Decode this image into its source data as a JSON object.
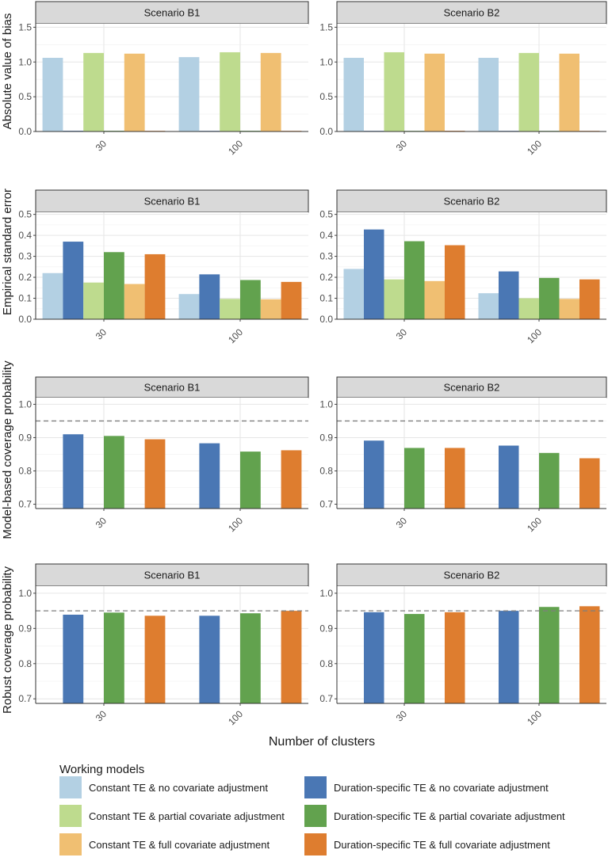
{
  "figure": {
    "x_axis_title": "Number of clusters",
    "legend_title": "Working models",
    "strip_fill": "#d9d9d9",
    "reference_line_color": "#7f7f7f",
    "panels_per_row": [
      "Scenario B1",
      "Scenario B2"
    ]
  },
  "models": [
    {
      "label": "Constant TE & no covariate adjustment",
      "color": "#b3d0e3"
    },
    {
      "label": "Duration-specific TE & no covariate adjustment",
      "color": "#4a77b4"
    },
    {
      "label": "Constant TE & partial covariate adjustment",
      "color": "#bedb8e"
    },
    {
      "label": "Duration-specific TE & partial covariate adjustment",
      "color": "#62a24e"
    },
    {
      "label": "Constant TE & full covariate adjustment",
      "color": "#f0bf72"
    },
    {
      "label": "Duration-specific TE & full covariate adjustment",
      "color": "#de7d2f"
    }
  ],
  "chart_data": [
    {
      "type": "bar",
      "ylabel": "Absolute value of bias",
      "xlabel": "Number of clusters",
      "categories": [
        "30",
        "100"
      ],
      "ylim": [
        0,
        1.55
      ],
      "yticks": [
        "0.0",
        "0.5",
        "1.0",
        "1.5"
      ],
      "ytick_values": [
        0,
        0.5,
        1.0,
        1.5
      ],
      "reference_line": null,
      "panels": [
        {
          "title": "Scenario B1",
          "values": [
            [
              1.06,
              0.01,
              1.13,
              0.01,
              1.12,
              0.005
            ],
            [
              1.07,
              0.005,
              1.14,
              0.01,
              1.13,
              0.005
            ]
          ]
        },
        {
          "title": "Scenario B2",
          "values": [
            [
              1.06,
              0.005,
              1.14,
              0.005,
              1.12,
              0.01
            ],
            [
              1.06,
              0.005,
              1.13,
              0.005,
              1.12,
              0.005
            ]
          ]
        }
      ]
    },
    {
      "type": "bar",
      "ylabel": "Empirical standard error",
      "xlabel": "Number of clusters",
      "categories": [
        "30",
        "100"
      ],
      "ylim": [
        0,
        0.51
      ],
      "yticks": [
        "0.0",
        "0.1",
        "0.2",
        "0.3",
        "0.4",
        "0.5"
      ],
      "ytick_values": [
        0,
        0.1,
        0.2,
        0.3,
        0.4,
        0.5
      ],
      "reference_line": null,
      "panels": [
        {
          "title": "Scenario B1",
          "values": [
            [
              0.22,
              0.37,
              0.175,
              0.32,
              0.168,
              0.31
            ],
            [
              0.12,
              0.214,
              0.097,
              0.187,
              0.095,
              0.178
            ]
          ]
        },
        {
          "title": "Scenario B2",
          "values": [
            [
              0.24,
              0.428,
              0.19,
              0.372,
              0.182,
              0.353
            ],
            [
              0.124,
              0.228,
              0.1,
              0.197,
              0.097,
              0.19
            ]
          ]
        }
      ]
    },
    {
      "type": "bar",
      "ylabel": "Model-based coverage probability",
      "xlabel": "Number of clusters",
      "categories": [
        "30",
        "100"
      ],
      "ylim": [
        0.687,
        1.02
      ],
      "yticks": [
        "0.7",
        "0.8",
        "0.9",
        "1.0"
      ],
      "ytick_values": [
        0.7,
        0.8,
        0.9,
        1.0
      ],
      "reference_line": 0.95,
      "panels": [
        {
          "title": "Scenario B1",
          "values": [
            [
              null,
              0.91,
              null,
              0.905,
              null,
              0.895
            ],
            [
              null,
              0.883,
              null,
              0.858,
              null,
              0.862
            ]
          ]
        },
        {
          "title": "Scenario B2",
          "values": [
            [
              null,
              0.891,
              null,
              0.869,
              null,
              0.869
            ],
            [
              null,
              0.876,
              null,
              0.854,
              null,
              0.838
            ]
          ]
        }
      ]
    },
    {
      "type": "bar",
      "ylabel": "Robust coverage probability",
      "xlabel": "Number of clusters",
      "categories": [
        "30",
        "100"
      ],
      "ylim": [
        0.687,
        1.02
      ],
      "yticks": [
        "0.7",
        "0.8",
        "0.9",
        "1.0"
      ],
      "ytick_values": [
        0.7,
        0.8,
        0.9,
        1.0
      ],
      "reference_line": 0.95,
      "panels": [
        {
          "title": "Scenario B1",
          "values": [
            [
              null,
              0.939,
              null,
              0.945,
              null,
              0.936
            ],
            [
              null,
              0.936,
              null,
              0.943,
              null,
              0.95
            ]
          ]
        },
        {
          "title": "Scenario B2",
          "values": [
            [
              null,
              0.946,
              null,
              0.941,
              null,
              0.946
            ],
            [
              null,
              0.95,
              null,
              0.961,
              null,
              0.963
            ]
          ]
        }
      ]
    }
  ]
}
